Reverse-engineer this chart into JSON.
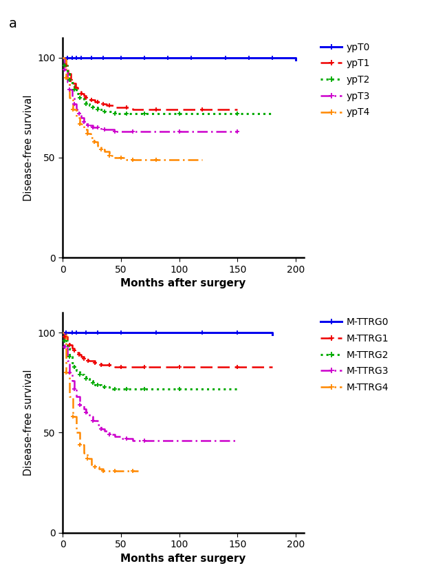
{
  "panel_a_label": "a",
  "xlabel": "Months after surgery",
  "ylabel": "Disease-free survival",
  "xlim": [
    0,
    207
  ],
  "ylim": [
    0,
    110
  ],
  "yticks": [
    0,
    50,
    100
  ],
  "xticks": [
    0,
    50,
    100,
    150,
    200
  ],
  "figsize": [
    6.5,
    8.41
  ],
  "dpi": 100,
  "bg_color": "#ffffff",
  "panel1": {
    "curves": [
      {
        "label": "ypT0",
        "color": "#0000EE",
        "linestyle": "solid",
        "linewidth": 2.2,
        "x": [
          0,
          4,
          6,
          8,
          10,
          12,
          14,
          16,
          18,
          20,
          25,
          30,
          35,
          40,
          50,
          60,
          70,
          80,
          90,
          100,
          110,
          120,
          140,
          160,
          180,
          200
        ],
        "y": [
          100,
          100,
          100,
          100,
          100,
          100,
          100,
          100,
          100,
          100,
          100,
          100,
          100,
          100,
          100,
          100,
          100,
          100,
          100,
          100,
          100,
          100,
          100,
          100,
          100,
          99
        ],
        "censor_x": [
          4,
          8,
          12,
          16,
          25,
          35,
          50,
          70,
          90,
          110,
          140,
          160,
          180
        ],
        "censor_y": [
          100,
          100,
          100,
          100,
          100,
          100,
          100,
          100,
          100,
          100,
          100,
          100,
          100
        ]
      },
      {
        "label": "ypT1",
        "color": "#EE0000",
        "linestyle": "dashed",
        "linewidth": 1.8,
        "x": [
          0,
          3,
          5,
          7,
          9,
          11,
          13,
          16,
          18,
          20,
          22,
          25,
          28,
          30,
          33,
          35,
          38,
          40,
          45,
          50,
          55,
          60,
          70,
          80,
          100,
          120,
          150
        ],
        "y": [
          100,
          96,
          92,
          89,
          87,
          85,
          83,
          82,
          81,
          80,
          79,
          79,
          78,
          78,
          77,
          77,
          76,
          76,
          75,
          75,
          75,
          74,
          74,
          74,
          74,
          74,
          74
        ],
        "censor_x": [
          3,
          7,
          11,
          16,
          20,
          25,
          30,
          35,
          40,
          55,
          80,
          120
        ],
        "censor_y": [
          96,
          89,
          85,
          82,
          80,
          79,
          78,
          77,
          76,
          75,
          74,
          74
        ]
      },
      {
        "label": "ypT2",
        "color": "#00AA00",
        "linestyle": "dotted",
        "linewidth": 2.2,
        "x": [
          0,
          2,
          4,
          6,
          8,
          10,
          12,
          15,
          18,
          20,
          23,
          26,
          28,
          30,
          33,
          36,
          40,
          45,
          50,
          55,
          60,
          70,
          80,
          100,
          120,
          150,
          180
        ],
        "y": [
          100,
          96,
          92,
          89,
          86,
          84,
          82,
          80,
          78,
          77,
          76,
          75,
          75,
          74,
          74,
          73,
          73,
          72,
          72,
          72,
          72,
          72,
          72,
          72,
          72,
          72,
          72
        ],
        "censor_x": [
          2,
          6,
          10,
          15,
          20,
          26,
          30,
          36,
          45,
          55,
          70,
          100,
          150
        ],
        "censor_y": [
          96,
          89,
          84,
          80,
          77,
          75,
          74,
          73,
          72,
          72,
          72,
          72,
          72
        ]
      },
      {
        "label": "ypT3",
        "color": "#CC00CC",
        "linestyle": "dashdot",
        "linewidth": 1.8,
        "x": [
          0,
          2,
          4,
          6,
          8,
          10,
          12,
          14,
          16,
          18,
          20,
          22,
          24,
          26,
          28,
          30,
          33,
          36,
          40,
          45,
          50,
          55,
          60,
          70,
          80,
          100,
          120,
          150
        ],
        "y": [
          100,
          94,
          88,
          84,
          80,
          77,
          74,
          72,
          70,
          68,
          67,
          66,
          66,
          65,
          65,
          65,
          64,
          64,
          64,
          63,
          63,
          63,
          63,
          63,
          63,
          63,
          63,
          63
        ],
        "censor_x": [
          2,
          6,
          10,
          14,
          18,
          22,
          26,
          30,
          36,
          45,
          60,
          100,
          150
        ],
        "censor_y": [
          94,
          84,
          77,
          72,
          68,
          66,
          65,
          65,
          64,
          63,
          63,
          63,
          63
        ]
      },
      {
        "label": "ypT4",
        "color": "#FF8800",
        "linestyle": "dashdot",
        "linewidth": 1.8,
        "x": [
          0,
          3,
          6,
          9,
          12,
          15,
          18,
          21,
          24,
          27,
          30,
          33,
          36,
          40,
          45,
          50,
          55,
          60,
          80,
          100,
          120
        ],
        "y": [
          100,
          90,
          80,
          74,
          70,
          67,
          64,
          62,
          60,
          58,
          56,
          54,
          53,
          51,
          50,
          50,
          49,
          49,
          49,
          49,
          49
        ],
        "censor_x": [
          3,
          9,
          15,
          21,
          27,
          33,
          40,
          50,
          60,
          80
        ],
        "censor_y": [
          90,
          74,
          67,
          62,
          58,
          54,
          51,
          50,
          49,
          49
        ]
      }
    ]
  },
  "panel2": {
    "curves": [
      {
        "label": "M-TTRG0",
        "color": "#0000EE",
        "linestyle": "solid",
        "linewidth": 2.2,
        "x": [
          0,
          3,
          5,
          8,
          10,
          12,
          15,
          20,
          25,
          30,
          40,
          50,
          60,
          80,
          100,
          120,
          150,
          180
        ],
        "y": [
          100,
          100,
          100,
          100,
          100,
          100,
          100,
          100,
          100,
          100,
          100,
          100,
          100,
          100,
          100,
          100,
          100,
          99
        ],
        "censor_x": [
          3,
          8,
          12,
          20,
          30,
          50,
          80,
          120,
          150
        ],
        "censor_y": [
          100,
          100,
          100,
          100,
          100,
          100,
          100,
          100,
          100
        ]
      },
      {
        "label": "M-TTRG1",
        "color": "#EE0000",
        "linestyle": "dashed",
        "linewidth": 1.8,
        "x": [
          0,
          2,
          4,
          6,
          8,
          10,
          12,
          14,
          16,
          18,
          20,
          22,
          25,
          28,
          30,
          33,
          36,
          40,
          45,
          50,
          60,
          70,
          80,
          100,
          120,
          150,
          180
        ],
        "y": [
          100,
          98,
          96,
          94,
          92,
          91,
          90,
          89,
          88,
          87,
          87,
          86,
          86,
          85,
          85,
          84,
          84,
          84,
          83,
          83,
          83,
          83,
          83,
          83,
          83,
          83,
          83
        ],
        "censor_x": [
          2,
          6,
          10,
          14,
          18,
          22,
          28,
          33,
          40,
          50,
          70,
          100,
          150
        ],
        "censor_y": [
          98,
          94,
          91,
          89,
          87,
          86,
          85,
          84,
          84,
          83,
          83,
          83,
          83
        ]
      },
      {
        "label": "M-TTRG2",
        "color": "#00AA00",
        "linestyle": "dotted",
        "linewidth": 2.2,
        "x": [
          0,
          2,
          4,
          6,
          8,
          10,
          12,
          15,
          18,
          20,
          23,
          26,
          28,
          30,
          33,
          36,
          40,
          45,
          50,
          55,
          60,
          70,
          80,
          100,
          120,
          150
        ],
        "y": [
          100,
          96,
          92,
          88,
          85,
          83,
          81,
          79,
          78,
          77,
          76,
          75,
          74,
          74,
          73,
          73,
          72,
          72,
          72,
          72,
          72,
          72,
          72,
          72,
          72,
          72
        ],
        "censor_x": [
          2,
          6,
          10,
          15,
          20,
          26,
          30,
          36,
          45,
          55,
          70,
          100
        ],
        "censor_y": [
          96,
          88,
          83,
          79,
          77,
          75,
          74,
          73,
          72,
          72,
          72,
          72
        ]
      },
      {
        "label": "M-TTRG3",
        "color": "#CC00CC",
        "linestyle": "dashdot",
        "linewidth": 1.8,
        "x": [
          0,
          2,
          4,
          6,
          8,
          10,
          12,
          15,
          18,
          20,
          23,
          26,
          30,
          33,
          36,
          40,
          45,
          50,
          55,
          60,
          70,
          80,
          100,
          120,
          150
        ],
        "y": [
          100,
          93,
          86,
          80,
          76,
          72,
          68,
          64,
          62,
          60,
          58,
          56,
          54,
          52,
          51,
          49,
          48,
          47,
          47,
          46,
          46,
          46,
          46,
          46,
          46
        ],
        "censor_x": [
          2,
          6,
          10,
          15,
          20,
          26,
          33,
          40,
          55,
          70
        ],
        "censor_y": [
          93,
          80,
          72,
          64,
          60,
          56,
          52,
          49,
          47,
          46
        ]
      },
      {
        "label": "M-TTRG4",
        "color": "#FF8800",
        "linestyle": "dashdot",
        "linewidth": 1.8,
        "x": [
          0,
          3,
          6,
          9,
          12,
          15,
          18,
          21,
          25,
          28,
          31,
          35,
          40,
          45,
          50,
          55,
          60,
          65
        ],
        "y": [
          100,
          80,
          68,
          58,
          50,
          44,
          40,
          37,
          34,
          33,
          32,
          31,
          31,
          31,
          31,
          31,
          31,
          31
        ],
        "censor_x": [
          3,
          9,
          15,
          21,
          28,
          35,
          45,
          60
        ],
        "censor_y": [
          80,
          58,
          44,
          37,
          33,
          31,
          31,
          31
        ]
      }
    ]
  }
}
